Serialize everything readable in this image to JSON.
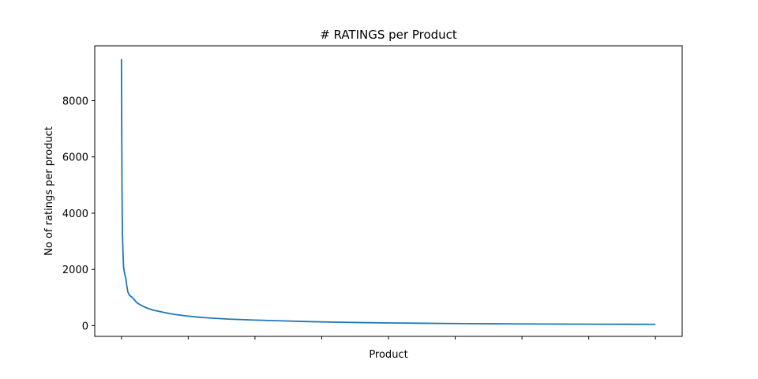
{
  "chart_data": {
    "type": "line",
    "title": "# RATINGS per Product",
    "xlabel": "Product",
    "ylabel": "No of ratings per product",
    "xlim": [
      -0.05,
      1.05
    ],
    "ylim": [
      -380,
      9950
    ],
    "yticks": [
      0,
      2000,
      4000,
      6000,
      8000
    ],
    "xtick_count": 9,
    "grid": false,
    "legend": "none",
    "series": [
      {
        "color": "#1f77b4",
        "x": [
          0,
          0.0005,
          0.001,
          0.0015,
          0.002,
          0.003,
          0.004,
          0.005,
          0.0065,
          0.008,
          0.01,
          0.012,
          0.015,
          0.02,
          0.025,
          0.03,
          0.04,
          0.05,
          0.06,
          0.07,
          0.08,
          0.09,
          0.1,
          0.12,
          0.14,
          0.16,
          0.2,
          0.25,
          0.3,
          0.35,
          0.4,
          0.45,
          0.5,
          0.55,
          0.6,
          0.65,
          0.7,
          0.75,
          0.8,
          0.85,
          0.9,
          0.95,
          1.0
        ],
        "y": [
          9480,
          7000,
          5000,
          3900,
          3150,
          2550,
          2080,
          1950,
          1800,
          1700,
          1420,
          1200,
          1080,
          1010,
          900,
          800,
          690,
          610,
          550,
          510,
          470,
          430,
          400,
          350,
          310,
          280,
          235,
          200,
          170,
          145,
          125,
          110,
          98,
          88,
          80,
          73,
          67,
          62,
          58,
          55,
          52,
          50,
          48
        ]
      }
    ]
  }
}
